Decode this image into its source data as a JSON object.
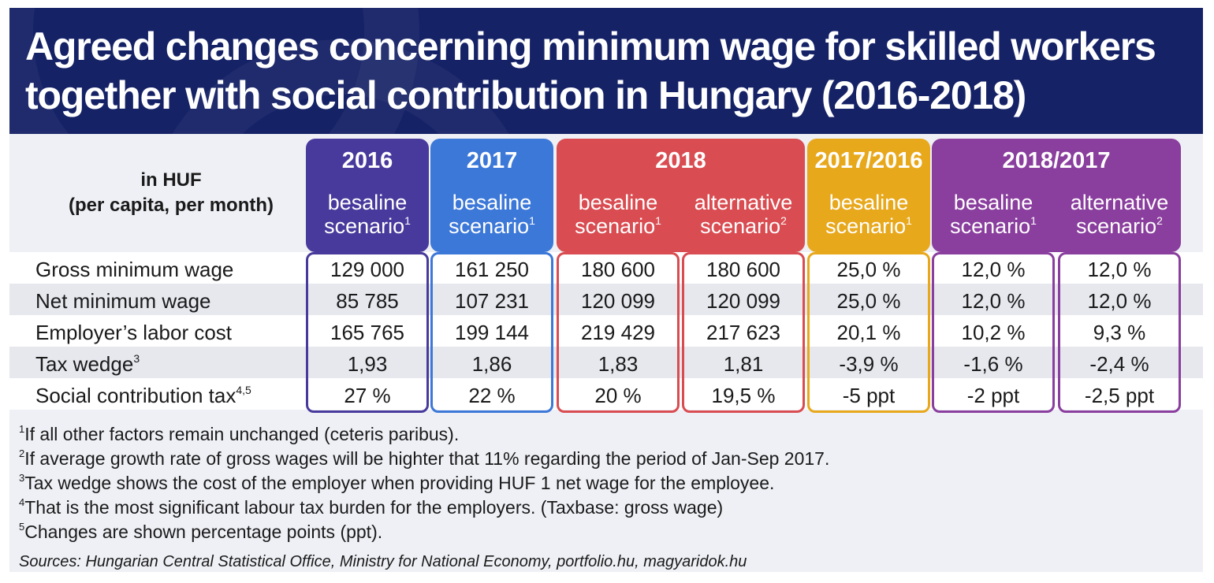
{
  "title_line1": "Agreed changes concerning minimum wage for skilled workers",
  "title_line2": "together with social contribution in Hungary (2016-2018)",
  "unit_line1": "in HUF",
  "unit_line2": "(per capita, per month)",
  "colors": {
    "header_bg": "#152266",
    "g2016": "#483a9c",
    "g2017": "#3c78d8",
    "g2018": "#d94c51",
    "g2017_2016": "#e8a81c",
    "g2018_2017": "#8a3e9e"
  },
  "chart_data": {
    "type": "table",
    "title": "Agreed changes concerning minimum wage for skilled workers together with social contribution in Hungary (2016-2018)",
    "groups": [
      {
        "label": "2016",
        "columns": [
          {
            "line1": "besaline",
            "line2": "scenario",
            "note": "1"
          }
        ]
      },
      {
        "label": "2017",
        "columns": [
          {
            "line1": "besaline",
            "line2": "scenario",
            "note": "1"
          }
        ]
      },
      {
        "label": "2018",
        "columns": [
          {
            "line1": "besaline",
            "line2": "scenario",
            "note": "1"
          },
          {
            "line1": "alternative",
            "line2": "scenario",
            "note": "2"
          }
        ]
      },
      {
        "label": "2017/2016",
        "columns": [
          {
            "line1": "besaline",
            "line2": "scenario",
            "note": "1"
          }
        ]
      },
      {
        "label": "2018/2017",
        "columns": [
          {
            "line1": "besaline",
            "line2": "scenario",
            "note": "1"
          },
          {
            "line1": "alternative",
            "line2": "scenario",
            "note": "2"
          }
        ]
      }
    ],
    "rows": [
      {
        "label": "Gross minimum wage",
        "note": "",
        "values": [
          "129 000",
          "161 250",
          "180 600",
          "180 600",
          "25,0 %",
          "12,0 %",
          "12,0 %"
        ]
      },
      {
        "label": "Net minimum wage",
        "note": "",
        "values": [
          "85 785",
          "107 231",
          "120 099",
          "120 099",
          "25,0 %",
          "12,0 %",
          "12,0 %"
        ]
      },
      {
        "label": "Employer’s labor cost",
        "note": "",
        "values": [
          "165 765",
          "199 144",
          "219 429",
          "217 623",
          "20,1 %",
          "10,2 %",
          "9,3 %"
        ]
      },
      {
        "label": "Tax wedge",
        "note": "3",
        "values": [
          "1,93",
          "1,86",
          "1,83",
          "1,81",
          "-3,9 %",
          "-1,6 %",
          "-2,4 %"
        ]
      },
      {
        "label": "Social contribution tax",
        "note": "4,5",
        "values": [
          "27 %",
          "22 %",
          "20 %",
          "19,5 %",
          "-5 ppt",
          "-2 ppt",
          "-2,5 ppt"
        ]
      }
    ]
  },
  "footnotes": [
    {
      "mark": "1",
      "text": "If all other factors remain unchanged (ceteris paribus)."
    },
    {
      "mark": "2",
      "text": "If average growth rate of gross wages will be highter that 11% regarding the period of Jan-Sep 2017."
    },
    {
      "mark": "3",
      "text": "Tax wedge shows the cost of the employer when providing HUF 1 net wage for the employee."
    },
    {
      "mark": "4",
      "text": "That is the most significant labour tax burden for the employers. (Taxbase: gross wage)"
    },
    {
      "mark": "5",
      "text": "Changes are shown percentage points (ppt)."
    }
  ],
  "sources": "Sources: Hungarian Central Statistical Office, Ministry for National Economy, portfolio.hu, magyaridok.hu"
}
